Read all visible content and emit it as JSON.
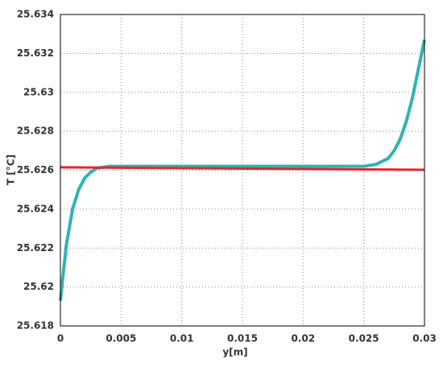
{
  "chart_data": {
    "type": "line",
    "xlabel": "y[m]",
    "ylabel": "T [°C]",
    "xlim": [
      0,
      0.03
    ],
    "xticks": [
      0,
      0.005,
      0.01,
      0.015,
      0.02,
      0.025,
      0.03
    ],
    "ylim": [
      25.618,
      25.634
    ],
    "yticks": [
      25.618,
      25.62,
      25.622,
      25.624,
      25.626,
      25.628,
      25.63,
      25.632,
      25.634
    ],
    "grid": true,
    "series": [
      {
        "color": "#2fb3b3",
        "width": 4,
        "x": [
          0,
          0.0002,
          0.0005,
          0.001,
          0.0015,
          0.002,
          0.0025,
          0.003,
          0.004,
          0.01,
          0.02,
          0.025,
          0.026,
          0.027,
          0.0275,
          0.028,
          0.0285,
          0.029,
          0.0295,
          0.03
        ],
        "values": [
          25.6193,
          25.6205,
          25.6222,
          25.624,
          25.625,
          25.6256,
          25.6259,
          25.6261,
          25.6262,
          25.6262,
          25.6262,
          25.6262,
          25.6263,
          25.6266,
          25.627,
          25.6276,
          25.6285,
          25.6297,
          25.6312,
          25.6327
        ]
      },
      {
        "color": "#e8262b",
        "width": 3,
        "x": [
          0,
          0.03
        ],
        "values": [
          25.62615,
          25.62602
        ]
      }
    ]
  }
}
